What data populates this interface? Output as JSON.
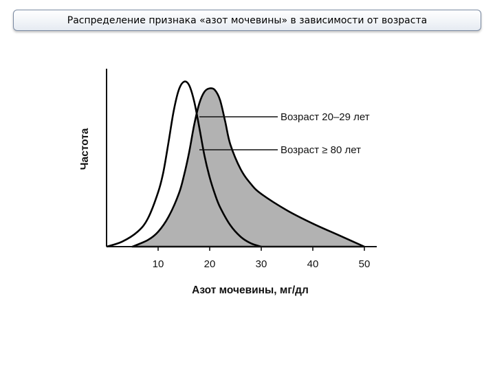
{
  "slide": {
    "title": "Распределение признака «азот мочевины» в зависимости от возраста"
  },
  "chart_data": {
    "type": "area",
    "xlabel": "Азот мочевины, мг/дл",
    "ylabel": "Частота",
    "xlim": [
      0,
      52
    ],
    "ylim": [
      0,
      1
    ],
    "x_ticks": [
      10,
      20,
      30,
      40,
      50
    ],
    "grid": false,
    "y_ticks_shown": false,
    "series": [
      {
        "name": "Возраст 20–29 лет",
        "fill": "none",
        "points": [
          [
            0,
            0
          ],
          [
            3,
            0.03
          ],
          [
            6,
            0.09
          ],
          [
            8,
            0.17
          ],
          [
            10,
            0.33
          ],
          [
            11,
            0.45
          ],
          [
            12,
            0.63
          ],
          [
            13,
            0.82
          ],
          [
            14,
            0.95
          ],
          [
            15,
            1.0
          ],
          [
            16,
            0.98
          ],
          [
            17,
            0.88
          ],
          [
            18,
            0.72
          ],
          [
            19,
            0.55
          ],
          [
            20,
            0.42
          ],
          [
            21,
            0.32
          ],
          [
            22,
            0.24
          ],
          [
            24,
            0.13
          ],
          [
            26,
            0.06
          ],
          [
            28,
            0.02
          ],
          [
            30,
            0
          ]
        ]
      },
      {
        "name": "Возраст ≥ 80 лет",
        "fill": "#b2b2b2",
        "points": [
          [
            5,
            0
          ],
          [
            8,
            0.04
          ],
          [
            10,
            0.09
          ],
          [
            12,
            0.18
          ],
          [
            14,
            0.32
          ],
          [
            15,
            0.43
          ],
          [
            16,
            0.57
          ],
          [
            17,
            0.74
          ],
          [
            18,
            0.87
          ],
          [
            19,
            0.94
          ],
          [
            20,
            0.96
          ],
          [
            21,
            0.95
          ],
          [
            22,
            0.89
          ],
          [
            23,
            0.76
          ],
          [
            24,
            0.62
          ],
          [
            26,
            0.47
          ],
          [
            28,
            0.38
          ],
          [
            30,
            0.32
          ],
          [
            35,
            0.22
          ],
          [
            40,
            0.14
          ],
          [
            45,
            0.07
          ],
          [
            50,
            0
          ]
        ]
      }
    ],
    "legend": {
      "placement": "inline-right",
      "entries": [
        "Возраст 20–29 лет",
        "Возраст ≥ 80 лет"
      ],
      "leader_x": [
        18,
        18
      ]
    }
  }
}
